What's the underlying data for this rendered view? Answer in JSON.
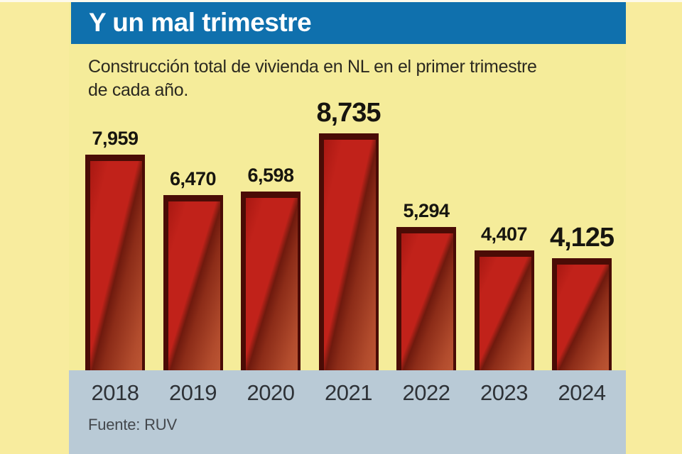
{
  "header": {
    "title": "Y un mal trimestre"
  },
  "subtitle": {
    "line1": "Construcción total de vivienda en NL en el primer trimestre",
    "line2": "de cada año."
  },
  "source": "Fuente: RUV",
  "colors": {
    "header_bg": "#0F70AD",
    "background": "#F8EC9E",
    "panel": "#F5EC9A",
    "band": "#B9CAD6",
    "bar_red": "#C1221A",
    "bar_brick": "#B64E2E",
    "bar_outline": "#4A0C06",
    "label_text": "#17150F",
    "year_text": "#2E3237"
  },
  "chart_data": {
    "type": "bar",
    "title": "Y un mal trimestre",
    "subtitle": "Construcción total de vivienda en NL en el primer trimestre de cada año.",
    "source": "Fuente: RUV",
    "categories": [
      "2018",
      "2019",
      "2020",
      "2021",
      "2022",
      "2023",
      "2024"
    ],
    "values": [
      7959,
      6470,
      6598,
      8735,
      5294,
      4407,
      4125
    ],
    "value_labels": [
      "7,959",
      "6,470",
      "6,598",
      "8,735",
      "5,294",
      "4,407",
      "4,125"
    ],
    "emphasized_indices": [
      3,
      6
    ],
    "xlabel": "",
    "ylabel": "",
    "ylim": [
      0,
      8735
    ],
    "grid": false,
    "legend": false
  }
}
